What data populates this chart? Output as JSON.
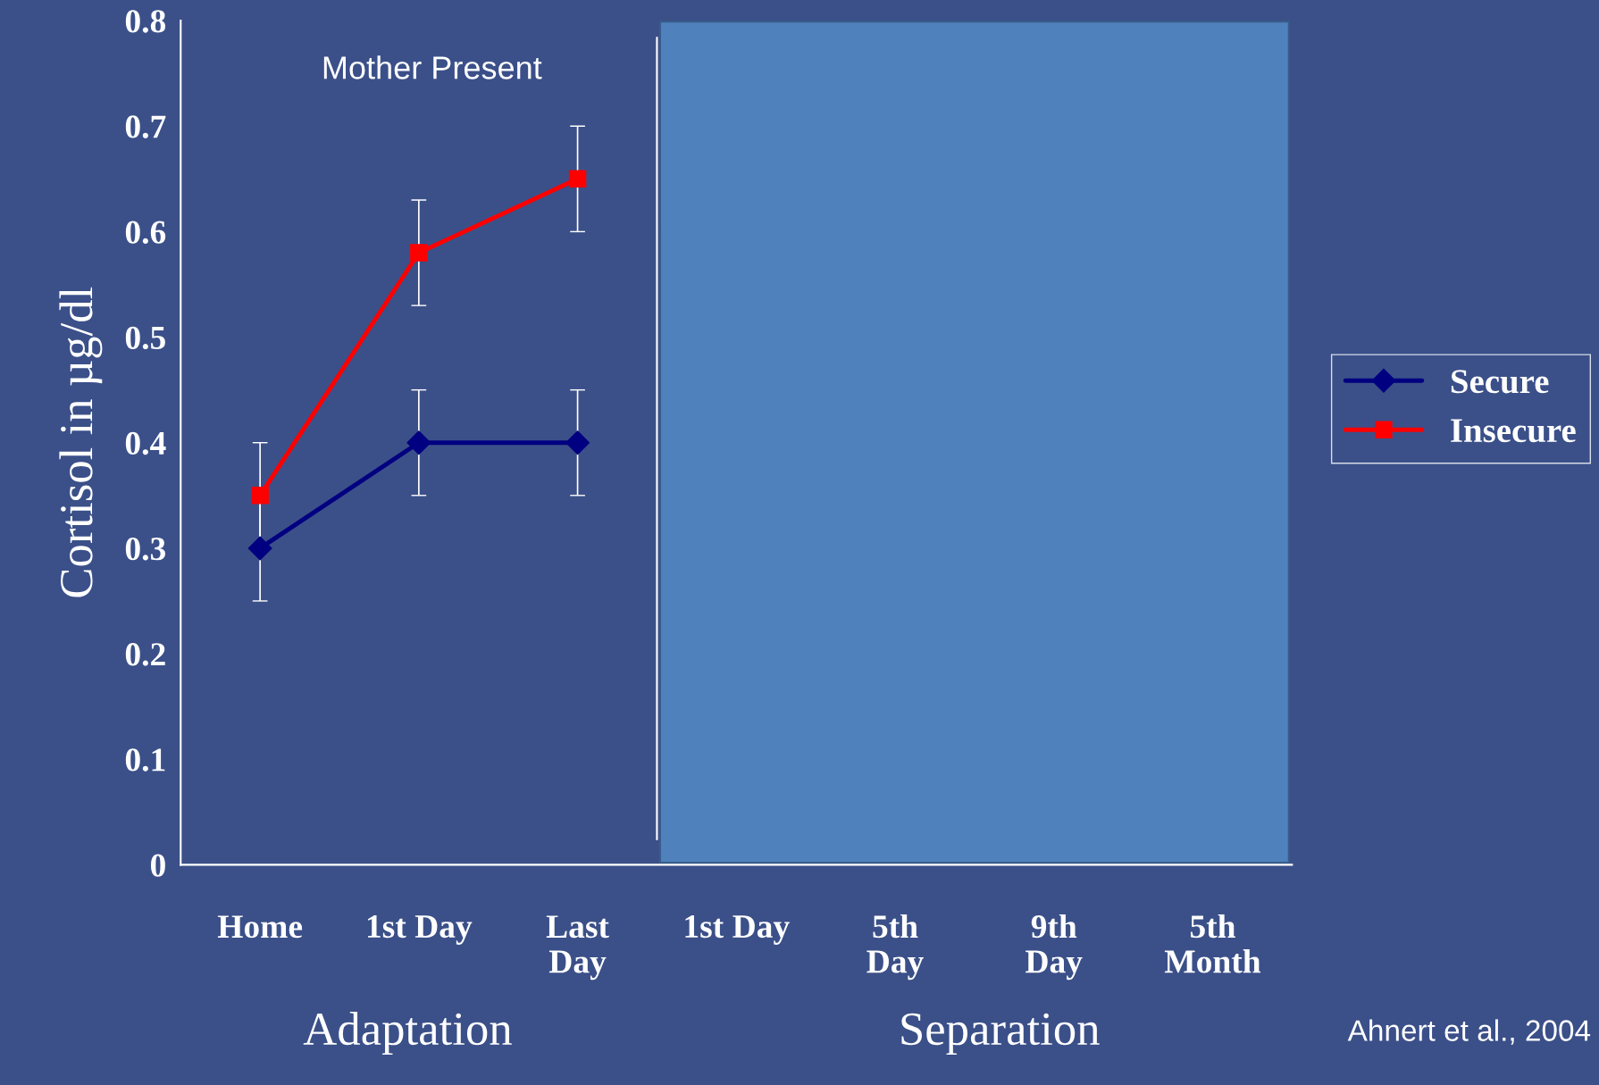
{
  "chart_data": {
    "type": "line",
    "ylabel": "Cortisol in µg/dl",
    "categories": [
      "Home",
      "1st Day",
      "Last\nDay",
      "1st Day",
      "5th\nDay",
      "9th\nDay",
      "5th\nMonth"
    ],
    "series": [
      {
        "name": "Secure",
        "color": "#000080",
        "marker": "diamond",
        "values": [
          0.3,
          0.4,
          0.4,
          null,
          null,
          null,
          null
        ],
        "errors": [
          0.05,
          0.05,
          0.05,
          null,
          null,
          null,
          null
        ]
      },
      {
        "name": "Insecure",
        "color": "#ff0000",
        "marker": "square",
        "values": [
          0.35,
          0.58,
          0.65,
          null,
          null,
          null,
          null
        ],
        "errors": [
          0.05,
          0.05,
          0.05,
          null,
          null,
          null,
          null
        ]
      }
    ],
    "ylim": [
      0,
      0.8
    ],
    "yticks": [
      0,
      0.1,
      0.2,
      0.3,
      0.4,
      0.5,
      0.6,
      0.7,
      0.8
    ],
    "annotations": [
      "Mother Present",
      "Adaptation",
      "Separation",
      "Ahnert et al., 2004"
    ],
    "legend": "right",
    "grid": false
  }
}
